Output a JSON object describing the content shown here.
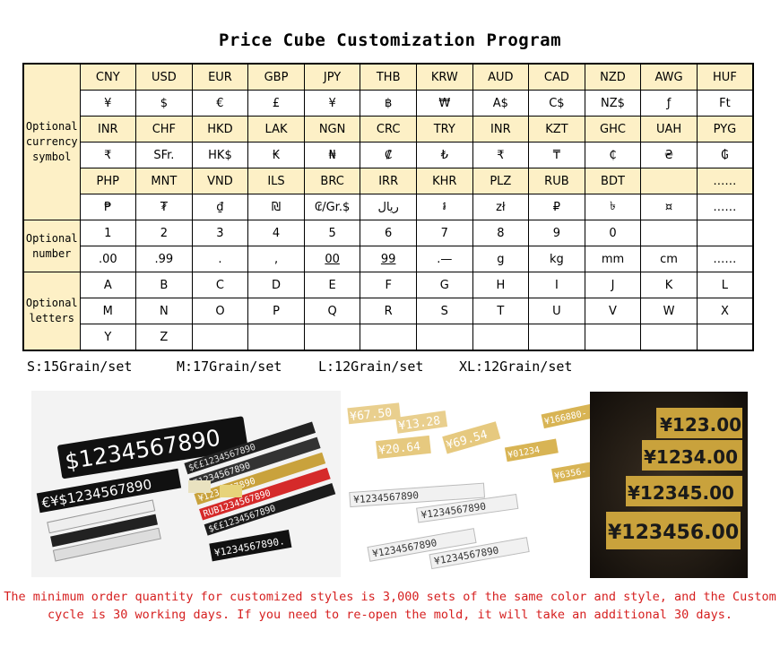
{
  "title": "Price Cube Customization Program",
  "table": {
    "categories": {
      "currency": "Optional currency symbol",
      "number": "Optional number",
      "letters": "Optional letters"
    },
    "currency_rows": [
      [
        "CNY",
        "USD",
        "EUR",
        "GBP",
        "JPY",
        "THB",
        "KRW",
        "AUD",
        "CAD",
        "NZD",
        "AWG",
        "HUF"
      ],
      [
        "¥",
        "$",
        "€",
        "£",
        "¥",
        "฿",
        "₩",
        "A$",
        "C$",
        "NZ$",
        "ƒ",
        "Ft"
      ],
      [
        "INR",
        "CHF",
        "HKD",
        "LAK",
        "NGN",
        "CRC",
        "TRY",
        "INR",
        "KZT",
        "GHC",
        "UAH",
        "PYG"
      ],
      [
        "₹",
        "SFr.",
        "HK$",
        "₭",
        "₦",
        "₡",
        "₺",
        "₹",
        "₸",
        "₵",
        "₴",
        "₲"
      ],
      [
        "PHP",
        "MNT",
        "VND",
        "ILS",
        "BRC",
        "IRR",
        "KHR",
        "PLZ",
        "RUB",
        "BDT",
        "",
        "……"
      ],
      [
        "₱",
        "₮",
        "₫",
        "₪",
        "₢/Gr.$",
        "ریال",
        "៛",
        "zł",
        "₽",
        "৳",
        "¤",
        "……"
      ]
    ],
    "number_rows": [
      [
        "1",
        "2",
        "3",
        "4",
        "5",
        "6",
        "7",
        "8",
        "9",
        "0",
        "",
        ""
      ],
      [
        ".00",
        ".99",
        ".",
        ",",
        "00",
        "99",
        ".—",
        "g",
        "kg",
        "mm",
        "cm",
        "……"
      ]
    ],
    "letter_rows": [
      [
        "A",
        "B",
        "C",
        "D",
        "E",
        "F",
        "G",
        "H",
        "I",
        "J",
        "K",
        "L"
      ],
      [
        "M",
        "N",
        "O",
        "P",
        "Q",
        "R",
        "S",
        "T",
        "U",
        "V",
        "W",
        "X"
      ],
      [
        "Y",
        "Z",
        "",
        "",
        "",
        "",
        "",
        "",
        "",
        "",
        "",
        ""
      ]
    ]
  },
  "sizes": [
    "S:15Grain/set",
    "M:17Grain/set",
    "L:12Grain/set",
    "XL:12Grain/set"
  ],
  "photos": {
    "left": {
      "big_bar": "$1234567890",
      "bars": [
        "€¥$1234567890",
        "₹1234567890",
        "¥1234567890",
        "$€£1234567890",
        "RUB1234567890",
        "$€£1234567890"
      ],
      "small_bar": "¥1234567890."
    },
    "middle": {
      "cubes": [
        "¥67.50",
        "¥13.28",
        "¥20.64",
        "¥69.54"
      ],
      "strips": [
        "¥1234567890",
        "¥1234567890",
        "¥1234567890",
        "¥1234567890"
      ]
    },
    "right_top": {
      "cubes": [
        "¥166880-",
        "¥01234",
        "¥6356-"
      ]
    },
    "right": {
      "signs": [
        "¥123.00",
        "¥1234.00",
        "¥12345.00",
        "¥123456.00"
      ]
    }
  },
  "note": "The minimum order quantity for customized styles is 3,000 sets of the same color and style, and the Custom cycle is 30 working days. If you need to re-open the mold, it will take an additional 30 days.",
  "colors": {
    "header_bg": "#fdf0c6",
    "note": "#d62020",
    "gold": "#c9a23c"
  }
}
